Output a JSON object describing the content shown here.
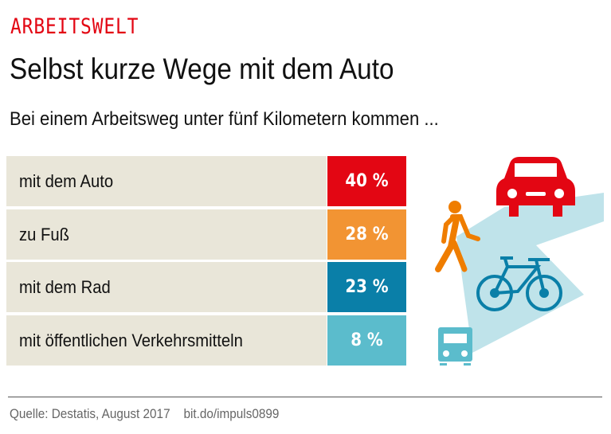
{
  "kicker": "ARBEITSWELT",
  "title": "Selbst kurze Wege mit dem Auto",
  "subtitle": "Bei einem Arbeitsweg unter fünf Kilometern kommen ...",
  "chart_data": {
    "type": "bar",
    "categories": [
      "mit dem Auto",
      "zu Fuß",
      "mit dem Rad",
      "mit öffentlichen Verkehrsmitteln"
    ],
    "values": [
      40,
      28,
      23,
      8
    ],
    "labels": [
      "40 %",
      "28 %",
      "23 %",
      "8 %"
    ],
    "colors": [
      "#e30613",
      "#f29433",
      "#0a7fa8",
      "#5bbccc"
    ],
    "unit": "%"
  },
  "icons": [
    "car-icon",
    "pedestrian-icon",
    "bicycle-icon",
    "bus-icon"
  ],
  "footer": {
    "source": "Quelle:  Destatis, August 2017",
    "link": "bit.do/impuls0899"
  }
}
